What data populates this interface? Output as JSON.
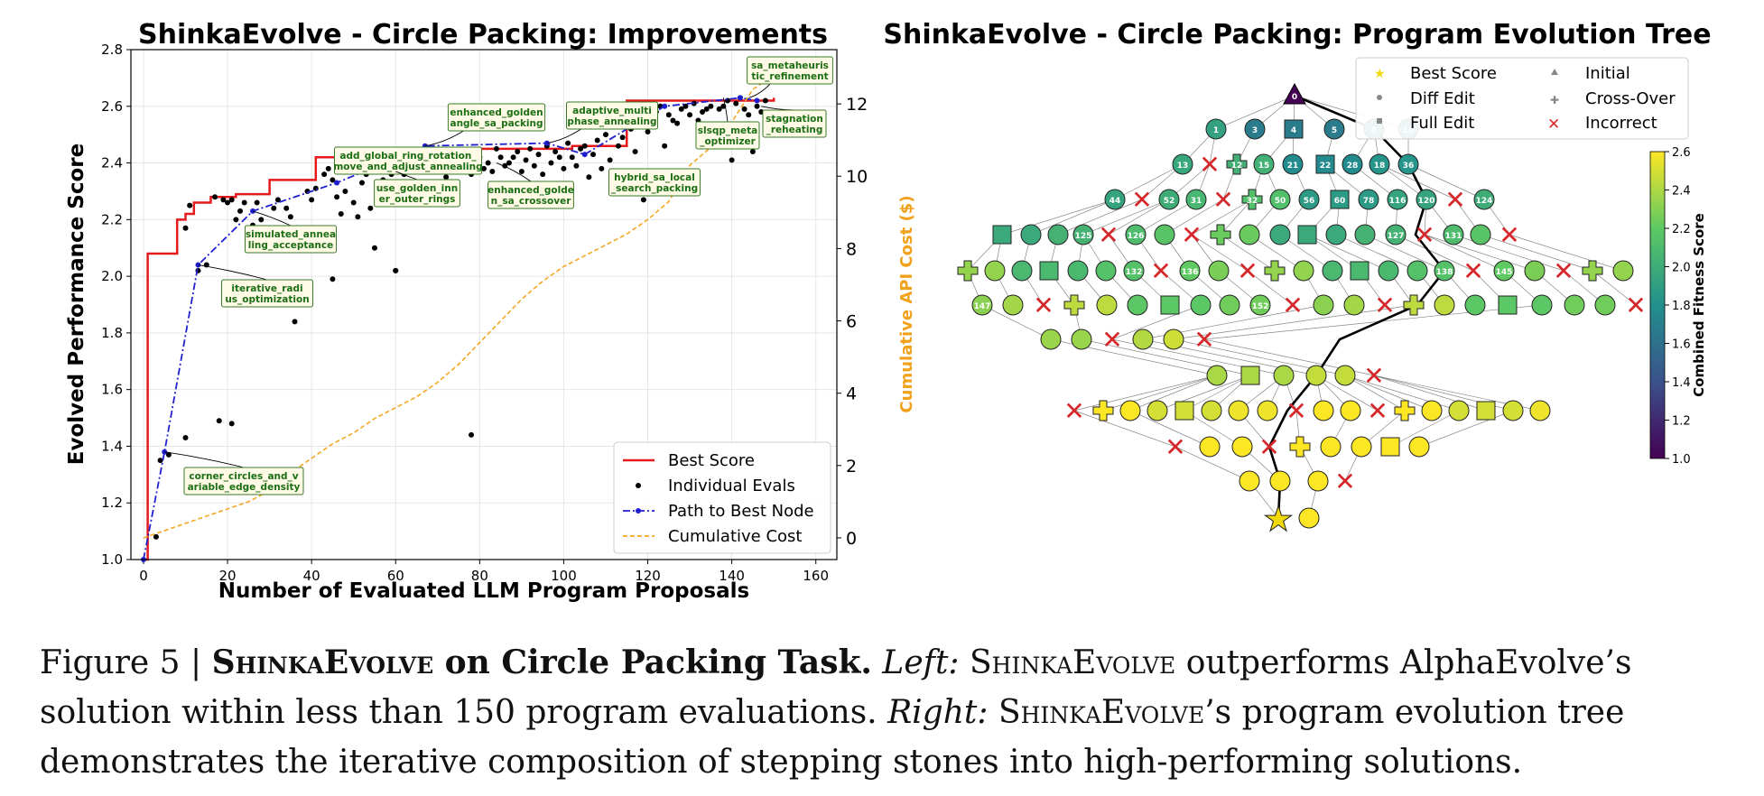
{
  "left_chart": {
    "title": "ShinkaEvolve - Circle Packing: Improvements",
    "xlabel": "Number of Evaluated LLM Program Proposals",
    "ylabel": "Evolved Performance Score",
    "y2label": "Cumulative API Cost ($)",
    "legend": [
      "Best Score",
      "Individual Evals",
      "Path to Best Node",
      "Cumulative Cost"
    ],
    "annotations": [
      {
        "text": "sa_metaheuris\ntic_refinement",
        "x": 144,
        "y": 2.63
      },
      {
        "text": "enhanced_golden\nangle_sa_packing",
        "x": 67,
        "y": 2.46
      },
      {
        "text": "adaptive_multi\nphase_annealing",
        "x": 96,
        "y": 2.47
      },
      {
        "text": "slsqp_meta\n_optimizer",
        "x": 138,
        "y": 2.63
      },
      {
        "text": "stagnation\n_reheating",
        "x": 147,
        "y": 2.6
      },
      {
        "text": "add_global_ring_rotation_\nmove_and_adjust_annealing",
        "x": 58,
        "y": 2.36
      },
      {
        "text": "use_golden_inn\ner_outer_rings",
        "x": 60,
        "y": 2.37
      },
      {
        "text": "enhanced_golde\nn_sa_crossover",
        "x": 84,
        "y": 2.4
      },
      {
        "text": "hybrid_sa_local\n_search_packing",
        "x": 118,
        "y": 2.37
      },
      {
        "text": "simulated_annea\nling_acceptance",
        "x": 26,
        "y": 2.23
      },
      {
        "text": "iterative_radi\nus_optimization",
        "x": 13,
        "y": 2.04
      },
      {
        "text": "corner_circles_and_v\nariable_edge_density",
        "x": 5,
        "y": 1.38
      }
    ]
  },
  "chart_data": [
    {
      "type": "line",
      "title": "ShinkaEvolve - Circle Packing: Improvements",
      "xlabel": "Number of Evaluated LLM Program Proposals",
      "ylabel": "Evolved Performance Score",
      "y2label": "Cumulative API Cost ($)",
      "xlim": [
        -3,
        165
      ],
      "ylim": [
        1.0,
        2.8
      ],
      "y2lim": [
        -0.6,
        13.5
      ],
      "xticks": [
        0,
        20,
        40,
        60,
        80,
        100,
        120,
        140,
        160
      ],
      "yticks": [
        1.0,
        1.2,
        1.4,
        1.6,
        1.8,
        2.0,
        2.2,
        2.4,
        2.6,
        2.8
      ],
      "y2ticks": [
        0,
        2,
        4,
        6,
        8,
        10,
        12
      ],
      "grid": true,
      "legend_position": "bottom-right",
      "series": [
        {
          "name": "Best Score",
          "style": "step",
          "color": "#e41a1c",
          "x": [
            0,
            1,
            8,
            10,
            12,
            16,
            18,
            22,
            30,
            41,
            46,
            60,
            68,
            80,
            102,
            115,
            130,
            150
          ],
          "y": [
            1.0,
            2.08,
            2.2,
            2.22,
            2.26,
            2.28,
            2.28,
            2.29,
            2.34,
            2.42,
            2.42,
            2.43,
            2.45,
            2.45,
            2.46,
            2.62,
            2.62,
            2.63
          ]
        },
        {
          "name": "Individual Evals",
          "style": "scatter",
          "color": "#000000",
          "x": [
            3,
            4,
            6,
            10,
            11,
            13,
            15,
            17,
            19,
            20,
            21,
            22,
            23,
            24,
            26,
            27,
            28,
            30,
            31,
            32,
            34,
            35,
            36,
            37,
            39,
            40,
            41,
            43,
            44,
            45,
            46,
            47,
            48,
            50,
            51,
            52,
            53,
            54,
            55,
            56,
            57,
            58,
            59,
            60,
            61,
            62,
            63,
            64,
            65,
            66,
            67,
            68,
            70,
            71,
            72,
            73,
            75,
            76,
            78,
            79,
            80,
            81,
            82,
            83,
            84,
            85,
            86,
            87,
            88,
            89,
            90,
            91,
            92,
            93,
            94,
            95,
            96,
            97,
            98,
            99,
            100,
            101,
            102,
            103,
            104,
            105,
            106,
            107,
            108,
            109,
            110,
            111,
            112,
            113,
            114,
            115,
            116,
            117,
            118,
            119,
            120,
            121,
            122,
            123,
            124,
            125,
            126,
            127,
            128,
            129,
            130,
            131,
            132,
            133,
            134,
            135,
            136,
            137,
            138,
            139,
            140,
            141,
            142,
            143,
            144,
            145,
            146,
            147,
            148,
            10,
            18,
            21,
            36,
            45,
            60,
            78
          ],
          "y": [
            1.08,
            1.35,
            1.37,
            2.17,
            2.25,
            2.02,
            2.04,
            2.28,
            2.27,
            2.26,
            2.27,
            2.2,
            2.23,
            2.26,
            2.18,
            2.26,
            2.2,
            2.16,
            2.24,
            2.27,
            2.24,
            2.21,
            2.14,
            2.16,
            2.3,
            2.27,
            2.31,
            2.36,
            2.38,
            2.34,
            2.28,
            2.22,
            2.3,
            2.26,
            2.21,
            2.33,
            2.36,
            2.24,
            2.1,
            2.4,
            2.34,
            2.26,
            2.36,
            2.02,
            2.4,
            2.36,
            2.31,
            2.39,
            2.44,
            2.4,
            2.38,
            2.41,
            2.44,
            2.42,
            2.35,
            2.4,
            2.38,
            2.43,
            2.36,
            2.44,
            2.42,
            2.38,
            2.4,
            2.37,
            2.45,
            2.42,
            2.39,
            2.4,
            2.42,
            2.44,
            2.37,
            2.41,
            2.45,
            2.39,
            2.43,
            2.36,
            2.46,
            2.4,
            2.44,
            2.42,
            2.38,
            2.47,
            2.42,
            2.39,
            2.45,
            2.46,
            2.35,
            2.43,
            2.48,
            2.38,
            2.5,
            2.41,
            2.34,
            2.46,
            2.49,
            2.36,
            2.52,
            2.44,
            2.37,
            2.27,
            2.51,
            2.55,
            2.58,
            2.6,
            2.46,
            2.57,
            2.55,
            2.54,
            2.59,
            2.6,
            2.57,
            2.61,
            2.55,
            2.58,
            2.59,
            2.6,
            2.53,
            2.59,
            2.6,
            2.62,
            2.41,
            2.61,
            2.63,
            2.59,
            2.57,
            2.44,
            2.6,
            2.58,
            2.62,
            1.43,
            1.49,
            1.48,
            1.84,
            1.99,
            2.02,
            1.44
          ]
        },
        {
          "name": "Path to Best Node",
          "style": "dashdot",
          "color": "#1f1fd0",
          "x": [
            0,
            5,
            13,
            26,
            46,
            67,
            96,
            105,
            124,
            142,
            146
          ],
          "y": [
            1.0,
            1.38,
            2.04,
            2.23,
            2.33,
            2.46,
            2.47,
            2.43,
            2.6,
            2.63,
            2.62
          ]
        },
        {
          "name": "Cumulative Cost",
          "style": "dashed",
          "color": "#f5a623",
          "axis": "right",
          "x": [
            0,
            5,
            10,
            15,
            20,
            25,
            30,
            35,
            40,
            45,
            50,
            55,
            60,
            65,
            70,
            75,
            80,
            85,
            90,
            95,
            100,
            105,
            110,
            115,
            120,
            125,
            130,
            135,
            140,
            145,
            150
          ],
          "y": [
            0,
            0.2,
            0.4,
            0.6,
            0.8,
            1.0,
            1.3,
            1.8,
            2.2,
            2.6,
            2.9,
            3.3,
            3.6,
            3.9,
            4.3,
            4.8,
            5.4,
            6.0,
            6.6,
            7.1,
            7.5,
            7.8,
            8.1,
            8.4,
            8.8,
            9.3,
            10.3,
            10.8,
            11.5,
            12.4,
            12.8
          ]
        }
      ]
    },
    {
      "type": "tree",
      "title": "ShinkaEvolve - Circle Packing: Program Evolution Tree",
      "colorbar_label": "Combined Fitness Score",
      "colorbar_range": [
        1.0,
        2.6
      ],
      "colorbar_ticks": [
        1.0,
        1.2,
        1.4,
        1.6,
        1.8,
        2.0,
        2.2,
        2.4,
        2.6
      ],
      "legend": [
        "Best Score",
        "Diff Edit",
        "Full Edit",
        "Initial",
        "Cross-Over",
        "Incorrect"
      ],
      "legend_position": "top-right",
      "node_labels": [
        "0",
        "1",
        "3",
        "4",
        "5",
        "8",
        "10",
        "13",
        "12",
        "15",
        "21",
        "22",
        "28",
        "18",
        "36",
        "44",
        "52",
        "31",
        "32",
        "50",
        "56",
        "60",
        "78",
        "116",
        "120",
        "124",
        "125",
        "126",
        "127",
        "131",
        "132",
        "136",
        "138",
        "145",
        "147",
        "152"
      ]
    }
  ],
  "caption": {
    "fig": "Figure 5 | ",
    "sc1": "ShinkaEvolve",
    "bold_rest": " on Circle Packing Task.",
    "left": "Left:",
    "t1": " ",
    "sc2": "ShinkaEvolve",
    "t2": " outperforms AlphaEvolve’s solution within less than 150 program evaluations. ",
    "right": "Right:",
    "t3": " ",
    "sc3": "ShinkaEvolve",
    "t4": "’s program evolution tree demonstrates the iterative composition of stepping stones into high-performing solutions."
  }
}
